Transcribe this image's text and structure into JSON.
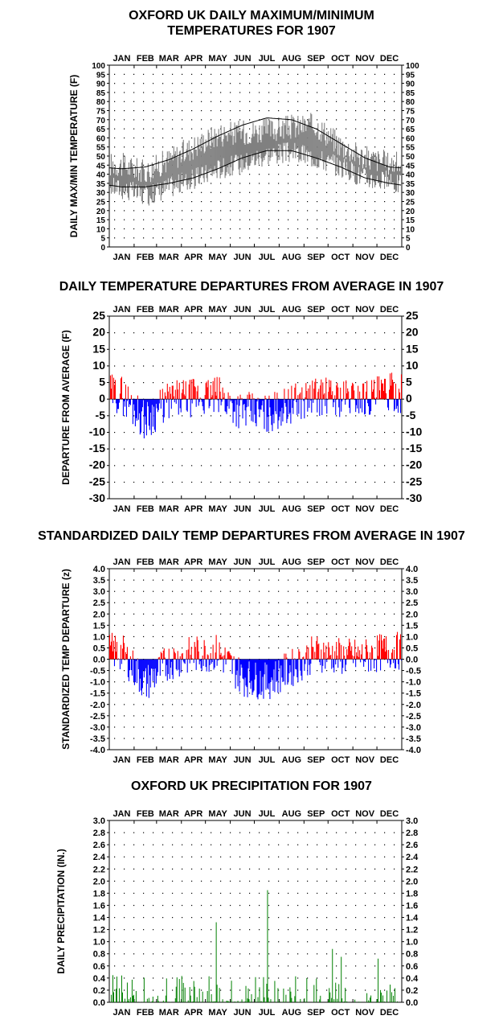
{
  "months": [
    "JAN",
    "FEB",
    "MAR",
    "APR",
    "MAY",
    "JUN",
    "JUL",
    "AUG",
    "SEP",
    "OCT",
    "NOV",
    "DEC"
  ],
  "colors": {
    "observed": "#808080",
    "normal": "#000000",
    "warm": "#ff0000",
    "cold": "#0000ff",
    "precip": "#008000",
    "grid": "#000000"
  },
  "chart_data": [
    {
      "type": "line",
      "title": "OXFORD UK DAILY MAXIMUM/MINIMUM",
      "subtitle": "TEMPERATURES FOR 1907",
      "ylabel": "DAILY MAX/MIN TEMPERATURE (F)",
      "ylim": [
        0,
        100
      ],
      "yticks": [
        0,
        5,
        10,
        15,
        20,
        25,
        30,
        35,
        40,
        45,
        50,
        55,
        60,
        65,
        70,
        75,
        80,
        85,
        90,
        95,
        100
      ],
      "grid": true,
      "normal_max_monthly": [
        43,
        44,
        48,
        54,
        61,
        67,
        71,
        70,
        65,
        57,
        49,
        44
      ],
      "normal_min_monthly": [
        33,
        33,
        35,
        38,
        43,
        49,
        53,
        53,
        49,
        44,
        38,
        35
      ],
      "observed_max_monthly": [
        45,
        41,
        48,
        55,
        62,
        63,
        64,
        66,
        67,
        56,
        49,
        46
      ],
      "observed_min_monthly": [
        32,
        28,
        33,
        37,
        43,
        46,
        51,
        52,
        49,
        44,
        38,
        36
      ]
    },
    {
      "type": "bar",
      "title": "DAILY TEMPERATURE DEPARTURES FROM AVERAGE IN 1907",
      "ylabel": "DEPARTURE FROM AVERAGE (F)",
      "ylim": [
        -30,
        25
      ],
      "yticks": [
        25,
        20,
        15,
        10,
        5,
        0,
        -5,
        -10,
        -15,
        -20,
        -25,
        -30
      ],
      "grid": true,
      "departure_monthly": [
        1.5,
        -6.5,
        -0.5,
        0.5,
        1,
        -3.5,
        -4.5,
        -1.5,
        1,
        0.5,
        0.5,
        2
      ]
    },
    {
      "type": "bar",
      "title": "STANDARDIZED DAILY TEMP DEPARTURES FROM AVERAGE IN 1907",
      "ylabel": "STANDARDIZED TEMP DEPARTURE (z)",
      "ylim": [
        -4,
        4
      ],
      "yticks": [
        "4.0",
        "3.5",
        "3.0",
        "2.5",
        "2.0",
        "1.5",
        "1.0",
        "0.5",
        "0.0",
        "-0.5",
        "-1.0",
        "-1.5",
        "-2.0",
        "-2.5",
        "-3.0",
        "-3.5",
        "-4.0"
      ],
      "grid": true,
      "departure_monthly": [
        0.3,
        -1.1,
        -0.1,
        0.2,
        0.3,
        -0.8,
        -1.0,
        -0.4,
        0.3,
        0.1,
        0.1,
        0.4
      ]
    },
    {
      "type": "bar",
      "title": "OXFORD UK PRECIPITATION FOR 1907",
      "ylabel": "DAILY PRECIPITATION (IN.)",
      "ylim": [
        0,
        3
      ],
      "yticks": [
        "3.0",
        "2.8",
        "2.6",
        "2.4",
        "2.2",
        "2.0",
        "1.8",
        "1.6",
        "1.4",
        "1.2",
        "1.0",
        "0.8",
        "0.6",
        "0.4",
        "0.2",
        "0.0"
      ],
      "grid": true,
      "notable_days": [
        {
          "day": 133,
          "value": 1.32
        },
        {
          "day": 197,
          "value": 1.85
        },
        {
          "day": 278,
          "value": 0.88
        },
        {
          "day": 289,
          "value": 0.75
        },
        {
          "day": 335,
          "value": 0.72
        }
      ]
    }
  ]
}
